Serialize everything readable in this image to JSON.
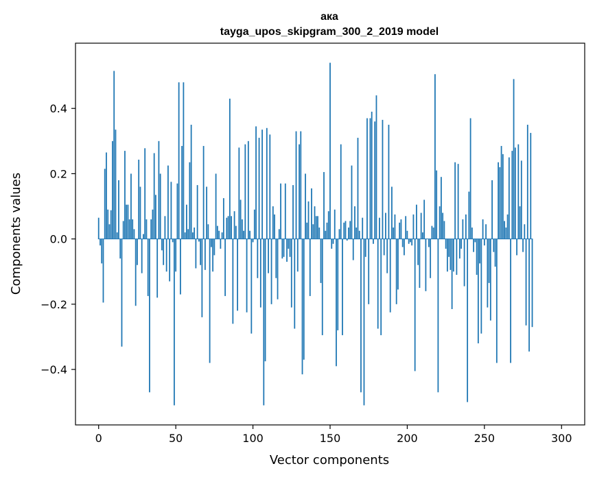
{
  "chart_data": {
    "type": "bar",
    "title": "ака",
    "subtitle": "tayga_upos_skipgram_300_2_2019 model",
    "xlabel": "Vector components",
    "ylabel": "Components values",
    "xlim": [
      -15,
      315
    ],
    "ylim": [
      -0.57,
      0.6
    ],
    "xticks": [
      0,
      50,
      100,
      150,
      200,
      250,
      300
    ],
    "xtick_labels": [
      "0",
      "50",
      "100",
      "150",
      "200",
      "250",
      "300"
    ],
    "yticks": [
      -0.4,
      -0.2,
      0.0,
      0.2,
      0.4
    ],
    "ytick_labels": [
      "−0.4",
      "−0.2",
      "0.0",
      "0.2",
      "0.4"
    ],
    "bar_color": "#1f77b4",
    "values": [
      0.065,
      -0.02,
      -0.075,
      -0.195,
      0.215,
      0.265,
      0.09,
      0.045,
      0.088,
      0.3,
      0.515,
      0.335,
      0.02,
      0.18,
      -0.06,
      -0.33,
      0.055,
      0.27,
      0.105,
      0.105,
      0.06,
      0.2,
      0.06,
      0.03,
      -0.205,
      -0.08,
      0.243,
      0.16,
      -0.105,
      0.015,
      0.278,
      0.06,
      -0.175,
      -0.47,
      0.06,
      0.09,
      0.263,
      0.135,
      -0.18,
      0.3,
      0.2,
      -0.035,
      -0.08,
      0.07,
      -0.1,
      0.225,
      -0.13,
      0.175,
      -0.01,
      -0.51,
      -0.1,
      0.17,
      0.48,
      -0.17,
      0.285,
      0.48,
      0.02,
      0.105,
      0.03,
      0.235,
      0.35,
      0.02,
      0.035,
      -0.09,
      0.165,
      -0.008,
      -0.08,
      -0.24,
      0.285,
      -0.095,
      0.16,
      0.045,
      -0.38,
      -0.025,
      -0.1,
      -0.05,
      0.2,
      0.04,
      0.025,
      -0.03,
      0.02,
      0.125,
      -0.175,
      0.065,
      0.07,
      0.43,
      0.07,
      -0.26,
      0.085,
      0.04,
      -0.22,
      0.28,
      0.12,
      0.06,
      0.025,
      0.29,
      -0.225,
      0.3,
      0.025,
      -0.29,
      -0.01,
      0.09,
      0.345,
      -0.12,
      0.31,
      -0.21,
      0.335,
      -0.51,
      -0.375,
      0.34,
      -0.105,
      0.32,
      -0.2,
      0.1,
      0.075,
      -0.12,
      -0.185,
      0.03,
      0.17,
      -0.06,
      -0.055,
      0.17,
      -0.07,
      -0.03,
      -0.055,
      -0.21,
      0.165,
      -0.275,
      0.33,
      -0.1,
      0.29,
      0.33,
      -0.415,
      -0.37,
      0.2,
      0.05,
      0.115,
      -0.175,
      0.155,
      0.045,
      0.1,
      0.07,
      0.07,
      0.035,
      -0.135,
      -0.295,
      0.205,
      0.025,
      0.05,
      0.085,
      0.54,
      -0.03,
      -0.015,
      0.09,
      -0.39,
      -0.28,
      0.03,
      0.29,
      -0.295,
      0.05,
      0.055,
      -0.005,
      0.035,
      0.055,
      0.225,
      -0.065,
      0.1,
      0.035,
      0.31,
      0.025,
      -0.47,
      0.065,
      -0.51,
      -0.055,
      0.37,
      -0.2,
      0.37,
      0.39,
      -0.015,
      0.36,
      0.44,
      -0.275,
      0.065,
      -0.295,
      0.365,
      -0.05,
      0.08,
      -0.105,
      0.35,
      -0.225,
      0.16,
      0.035,
      0.075,
      -0.2,
      -0.155,
      0.05,
      0.06,
      -0.025,
      -0.05,
      0.07,
      0.025,
      -0.015,
      -0.01,
      -0.02,
      0.075,
      -0.405,
      0.105,
      -0.08,
      -0.15,
      0.08,
      0.02,
      0.12,
      -0.16,
      0.0,
      -0.025,
      -0.12,
      0.04,
      0.035,
      0.505,
      0.21,
      -0.47,
      0.1,
      0.19,
      0.08,
      0.055,
      -0.03,
      -0.1,
      -0.055,
      -0.095,
      -0.215,
      -0.1,
      0.235,
      -0.11,
      0.23,
      -0.06,
      -0.03,
      0.06,
      -0.145,
      0.075,
      -0.5,
      0.145,
      0.37,
      0.035,
      -0.04,
      -0.01,
      -0.11,
      -0.32,
      -0.075,
      -0.29,
      0.06,
      -0.02,
      0.045,
      -0.21,
      -0.135,
      -0.25,
      0.18,
      -0.04,
      -0.085,
      -0.38,
      0.235,
      0.22,
      0.285,
      0.26,
      0.055,
      0.035,
      0.075,
      0.25,
      -0.38,
      0.27,
      0.49,
      0.28,
      -0.05,
      0.29,
      0.1,
      0.24,
      -0.04,
      0.045,
      -0.265,
      0.35,
      -0.345,
      0.325,
      -0.27
    ]
  }
}
